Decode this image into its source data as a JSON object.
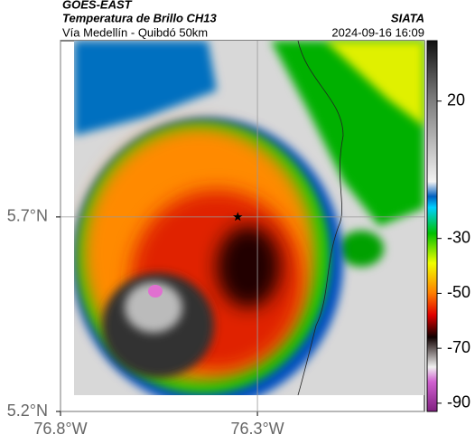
{
  "header": {
    "source": "GOES-EAST",
    "product": "Temperatura de Brillo CH13",
    "region": "Vía Medellín - Quibdó 50km",
    "org": "SIATA",
    "datetime": "2024-09-16 16:09"
  },
  "map": {
    "xlim": [
      -76.8,
      -75.876
    ],
    "ylim": [
      5.2,
      6.153
    ],
    "xticks": [
      {
        "value": -76.8,
        "label": "76.8°W"
      },
      {
        "value": -76.3,
        "label": "76.3°W"
      }
    ],
    "yticks": [
      {
        "value": 5.2,
        "label": "5.2°N"
      },
      {
        "value": 5.7,
        "label": "5.7°N"
      }
    ],
    "grid": true,
    "marker": {
      "lon": -76.35,
      "lat": 5.7
    }
  },
  "colorbar": {
    "lim": [
      -93,
      42
    ],
    "ticks": [
      20,
      -30,
      -50,
      -70,
      -90
    ]
  }
}
